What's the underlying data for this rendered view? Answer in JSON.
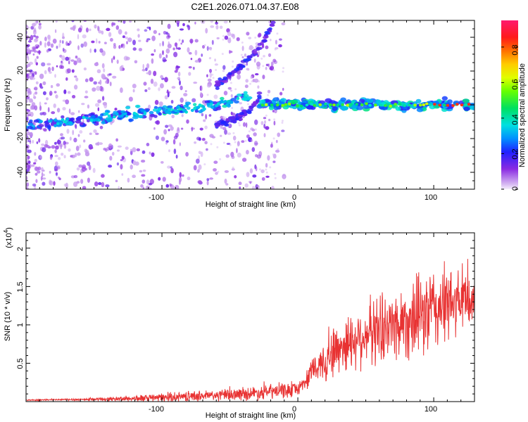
{
  "title": "C2E1.2026.071.04.37.E08",
  "chart_data": [
    {
      "type": "heatmap",
      "title": "C2E1.2026.071.04.37.E08",
      "xlabel": "Height of straight line (km)",
      "ylabel": "Frequency (Hz)",
      "xlim": [
        -200,
        130
      ],
      "ylim": [
        -50,
        50
      ],
      "xticks": [
        -100,
        0,
        100
      ],
      "yticks": [
        -40,
        -20,
        0,
        20,
        40
      ],
      "colorbar": {
        "label": "Normalized spectral amplitude",
        "ticks": [
          0.0,
          0.2,
          0.4,
          0.6,
          0.8
        ],
        "range": [
          0.0,
          0.95
        ]
      },
      "features": [
        {
          "name": "main branch",
          "x": [
            -200,
            -150,
            -100,
            -60,
            -35
          ],
          "y": [
            -13,
            -8,
            -4,
            0,
            5
          ]
        },
        {
          "name": "upper rising branch",
          "x": [
            -60,
            -45,
            -35,
            -25,
            -18
          ],
          "y": [
            12,
            20,
            28,
            38,
            48
          ]
        },
        {
          "name": "lower branch",
          "x": [
            -60,
            -45,
            -35,
            -28
          ],
          "y": [
            -12,
            -8,
            -3,
            5
          ]
        },
        {
          "name": "steady line",
          "x": [
            -28,
            0,
            50,
            100,
            130
          ],
          "y": [
            1,
            0,
            0,
            0,
            0
          ]
        }
      ]
    },
    {
      "type": "line",
      "xlabel": "Height of straight line (km)",
      "ylabel": "SNR (10 * v/v)",
      "scale_label": "(x10",
      "scale_exponent": "4",
      "scale_close": ")",
      "xlim": [
        -200,
        130
      ],
      "ylim": [
        0,
        2.2
      ],
      "xticks": [
        -100,
        0,
        100
      ],
      "yticks": [
        0.5,
        1.0,
        1.5,
        2.0
      ],
      "color": "#e83232",
      "envelope": {
        "x": [
          -200,
          -150,
          -120,
          -100,
          -80,
          -60,
          -40,
          -20,
          -5,
          0,
          5,
          10,
          20,
          30,
          40,
          50,
          60,
          70,
          80,
          90,
          100,
          110,
          120,
          130
        ],
        "base": [
          0.02,
          0.03,
          0.04,
          0.05,
          0.07,
          0.08,
          0.1,
          0.13,
          0.15,
          0.17,
          0.25,
          0.38,
          0.55,
          0.7,
          0.8,
          0.88,
          0.95,
          1.0,
          1.05,
          1.1,
          1.2,
          1.25,
          1.3,
          1.3
        ],
        "amp": [
          0.01,
          0.02,
          0.05,
          0.07,
          0.08,
          0.09,
          0.1,
          0.12,
          0.12,
          0.1,
          0.12,
          0.22,
          0.35,
          0.45,
          0.45,
          0.5,
          0.55,
          0.55,
          0.6,
          0.65,
          0.7,
          0.6,
          0.5,
          0.45
        ]
      }
    }
  ]
}
